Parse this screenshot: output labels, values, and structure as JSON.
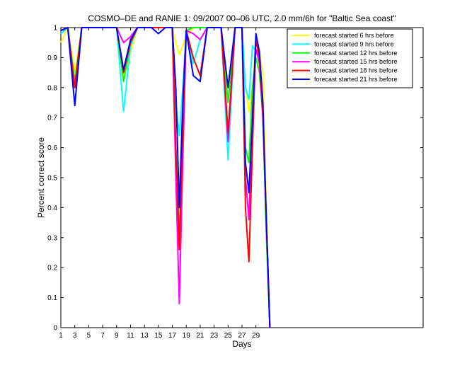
{
  "chart_data": {
    "type": "line",
    "title": "COSMO–DE and RANIE 1: 09/2007 00–06 UTC, 2.0 mm/6h for \"Baltic Sea coast\"",
    "xlabel": "Days",
    "ylabel": "Percent correct score",
    "xlim": [
      1,
      53
    ],
    "ylim": [
      0,
      1
    ],
    "x_tick_labels": [
      "1",
      "3",
      "5",
      "7",
      "9",
      "11",
      "13",
      "15",
      "17",
      "19",
      "21",
      "23",
      "25",
      "27",
      "29"
    ],
    "y_tick_labels": [
      "0",
      "0.1",
      "0.2",
      "0.3",
      "0.4",
      "0.5",
      "0.6",
      "0.7",
      "0.8",
      "0.9",
      "1"
    ],
    "grid": false,
    "legend_position": "top-right",
    "series": [
      {
        "name": "forecast started 6 hrs before",
        "color": "#ffff00",
        "x": [
          1,
          2,
          3,
          4,
          5,
          6,
          7,
          8,
          9,
          10,
          11,
          12,
          13,
          14,
          15,
          16,
          17,
          17.5,
          18,
          19,
          20,
          21,
          22,
          23,
          24,
          25,
          26,
          27,
          27.5,
          28,
          28.5,
          29,
          29.5,
          30,
          30.5,
          31
        ],
        "y": [
          0.95,
          1,
          0.85,
          1,
          1,
          1,
          1,
          1,
          1,
          0.83,
          0.92,
          1,
          1,
          1,
          1,
          1,
          1,
          0.95,
          0.91,
          0.97,
          1,
          1,
          1,
          1,
          1,
          0.8,
          1,
          1,
          0.8,
          0.72,
          0.8,
          0.95,
          0.92,
          0.85,
          0.4,
          0
        ]
      },
      {
        "name": "forecast started 9 hrs before",
        "color": "#00ffff",
        "x": [
          1,
          2,
          3,
          4,
          5,
          6,
          7,
          8,
          9,
          10,
          11,
          12,
          13,
          14,
          15,
          16,
          17,
          17.5,
          18,
          18.5,
          19,
          20,
          21,
          22,
          23,
          24,
          25,
          26,
          27,
          27.5,
          28,
          28.5,
          29,
          29.5,
          30,
          30.5,
          31
        ],
        "y": [
          0.98,
          1,
          0.8,
          1,
          1,
          1,
          1,
          1,
          1,
          0.72,
          0.94,
          1,
          1,
          1,
          1,
          1,
          1,
          0.75,
          0.64,
          0.8,
          0.98,
          0.88,
          0.96,
          1,
          1,
          1,
          0.56,
          1,
          1,
          0.8,
          0.76,
          0.94,
          0.92,
          0.9,
          0.7,
          0.35,
          0
        ]
      },
      {
        "name": "forecast started 12 hrs before",
        "color": "#00ff00",
        "x": [
          1,
          2,
          3,
          4,
          5,
          6,
          7,
          8,
          9,
          10,
          11,
          12,
          13,
          14,
          15,
          16,
          17,
          17.5,
          18,
          18.5,
          19,
          20,
          21,
          22,
          23,
          24,
          25,
          26,
          27,
          27.5,
          28,
          28.5,
          29,
          29.5,
          30,
          30.5,
          31
        ],
        "y": [
          0.99,
          1,
          0.82,
          1,
          1,
          1,
          1,
          1,
          1,
          0.82,
          0.95,
          1,
          1,
          1,
          1,
          1,
          1,
          0.6,
          0.3,
          0.7,
          0.99,
          1,
          1,
          1,
          1,
          1,
          0.75,
          1,
          1,
          0.6,
          0.55,
          0.8,
          0.9,
          0.85,
          0.7,
          0.3,
          0
        ]
      },
      {
        "name": "forecast started 15 hrs before",
        "color": "#ff00ff",
        "x": [
          1,
          2,
          3,
          4,
          5,
          6,
          7,
          8,
          9,
          10,
          11,
          12,
          13,
          14,
          15,
          16,
          17,
          17.5,
          18,
          18.5,
          19,
          20,
          21,
          22,
          23,
          24,
          25,
          26,
          27,
          27.5,
          28,
          28.5,
          29,
          29.5,
          30,
          30.5,
          31
        ],
        "y": [
          0.99,
          1,
          0.8,
          1,
          1,
          1,
          1,
          1,
          1,
          0.95,
          0.97,
          1,
          1,
          1,
          1,
          1,
          1,
          0.5,
          0.08,
          0.55,
          0.99,
          0.98,
          0.96,
          1,
          1,
          1,
          0.62,
          1,
          1,
          0.5,
          0.36,
          0.7,
          0.93,
          0.88,
          0.7,
          0.35,
          0
        ]
      },
      {
        "name": "forecast started 18 hrs before",
        "color": "#ff0000",
        "x": [
          1,
          2,
          3,
          4,
          5,
          6,
          7,
          8,
          9,
          10,
          11,
          12,
          13,
          14,
          15,
          16,
          17,
          17.5,
          18,
          18.5,
          19,
          20,
          21,
          22,
          23,
          24,
          25,
          26,
          27,
          27.5,
          28,
          28.5,
          29,
          29.5,
          30,
          30.5,
          31
        ],
        "y": [
          0.99,
          1,
          0.8,
          1,
          1,
          1,
          1,
          1,
          1,
          0.85,
          0.95,
          1,
          1,
          1,
          1,
          1,
          1,
          0.6,
          0.26,
          0.65,
          0.99,
          0.9,
          0.84,
          1,
          1,
          1,
          0.65,
          1,
          1,
          0.4,
          0.22,
          0.6,
          0.96,
          0.9,
          0.72,
          0.35,
          0
        ]
      },
      {
        "name": "forecast started 21 hrs before",
        "color": "#0000ff",
        "x": [
          1,
          2,
          3,
          4,
          5,
          6,
          7,
          8,
          9,
          10,
          11,
          12,
          13,
          14,
          15,
          16,
          17,
          17.5,
          18,
          18.5,
          19,
          20,
          21,
          22,
          23,
          24,
          25,
          26,
          27,
          27.5,
          28,
          28.5,
          29,
          29.5,
          30,
          30.5,
          31
        ],
        "y": [
          0.99,
          1,
          0.74,
          1,
          1,
          1,
          1,
          1,
          1,
          0.86,
          0.96,
          1,
          1,
          1,
          0.98,
          1,
          1,
          0.8,
          0.4,
          0.75,
          0.99,
          0.84,
          0.82,
          1,
          1,
          1,
          0.8,
          1,
          1,
          0.55,
          0.45,
          0.7,
          0.98,
          0.92,
          0.75,
          0.35,
          0
        ]
      }
    ]
  }
}
